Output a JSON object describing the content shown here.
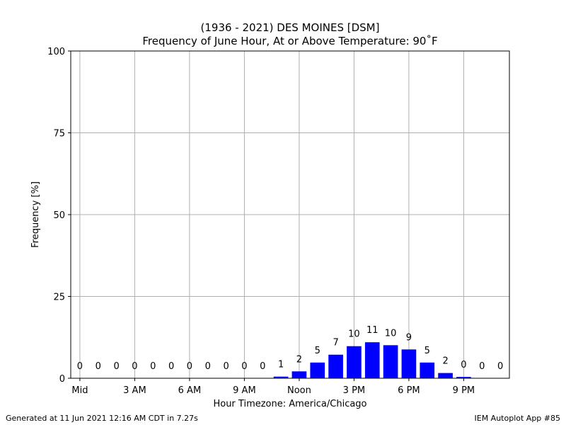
{
  "chart_data": {
    "type": "bar",
    "title_line1": "(1936 - 2021) DES MOINES [DSM]",
    "title_line2": "Frequency of June Hour, At or Above Temperature: 90˚F",
    "xlabel": "Hour Timezone: America/Chicago",
    "ylabel": "Frequency [%]",
    "ylim": [
      0,
      100
    ],
    "xlim": [
      -0.5,
      23.5
    ],
    "yticks": [
      0,
      25,
      50,
      75,
      100
    ],
    "xticks": [
      {
        "hour": 0,
        "label": "Mid"
      },
      {
        "hour": 3,
        "label": "3 AM"
      },
      {
        "hour": 6,
        "label": "6 AM"
      },
      {
        "hour": 9,
        "label": "9 AM"
      },
      {
        "hour": 12,
        "label": "Noon"
      },
      {
        "hour": 15,
        "label": "3 PM"
      },
      {
        "hour": 18,
        "label": "6 PM"
      },
      {
        "hour": 21,
        "label": "9 PM"
      }
    ],
    "grid": true,
    "bar_color": "#0000ff",
    "hours": [
      0,
      1,
      2,
      3,
      4,
      5,
      6,
      7,
      8,
      9,
      10,
      11,
      12,
      13,
      14,
      15,
      16,
      17,
      18,
      19,
      20,
      21,
      22,
      23
    ],
    "values": [
      0,
      0,
      0,
      0,
      0,
      0,
      0,
      0,
      0,
      0,
      0,
      0.5,
      2.1,
      4.8,
      7.2,
      9.8,
      11.0,
      10.1,
      8.8,
      4.8,
      1.6,
      0.4,
      0,
      0
    ],
    "labels": [
      "0",
      "0",
      "0",
      "0",
      "0",
      "0",
      "0",
      "0",
      "0",
      "0",
      "0",
      "1",
      "2",
      "5",
      "7",
      "10",
      "11",
      "10",
      "9",
      "5",
      "2",
      "0",
      "0",
      "0"
    ]
  },
  "footer": {
    "left": "Generated at 11 Jun 2021 12:16 AM CDT in 7.27s",
    "right": "IEM Autoplot App #85"
  }
}
